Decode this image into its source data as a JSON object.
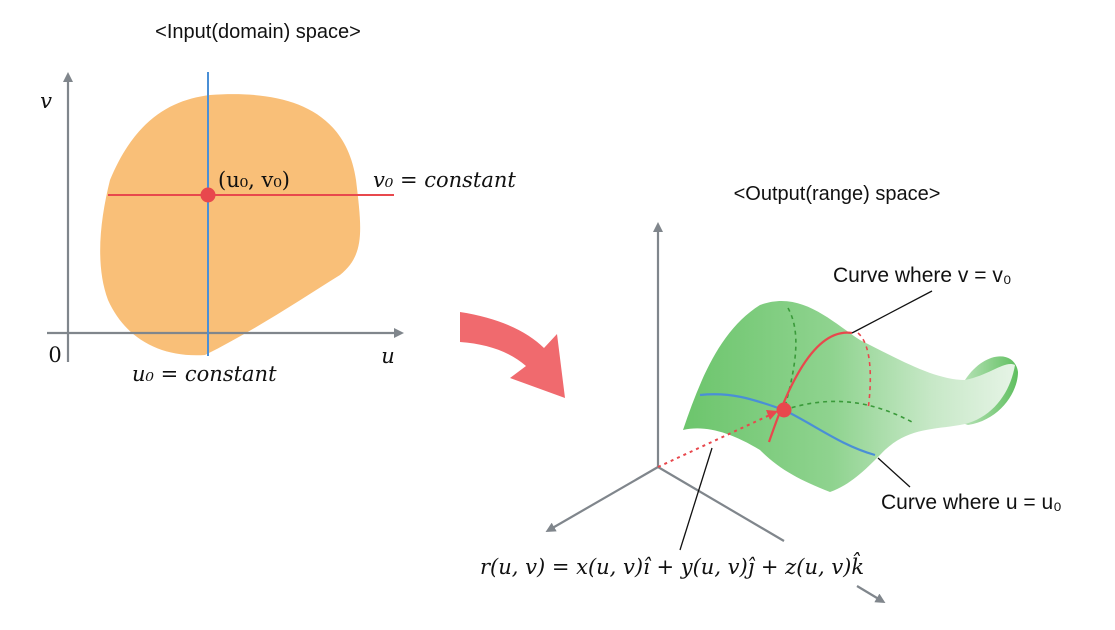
{
  "input_panel": {
    "title": "<Input(domain) space>",
    "axis_v": "v",
    "axis_u": "u",
    "origin": "0",
    "point_label": "(u₀, v₀)",
    "v_const_label": "v₀ = constant",
    "u_const_label": "u₀ = constant"
  },
  "output_panel": {
    "title": "<Output(range) space>",
    "curve_v_label": "Curve where v = v₀",
    "curve_u_label": "Curve where u = u₀",
    "equation": "r(u, v) = x(u, v)î + y(u, v)ĵ + z(u, v)k̂"
  },
  "colors": {
    "domain_fill": "#f9bf78",
    "axis_gray": "#80868c",
    "v_line_red": "#e8484d",
    "u_line_blue": "#4a8fd6",
    "point_red": "#e8484d",
    "surface_green": "#7fcf7f",
    "mapping_arrow": "#f06a6e"
  }
}
